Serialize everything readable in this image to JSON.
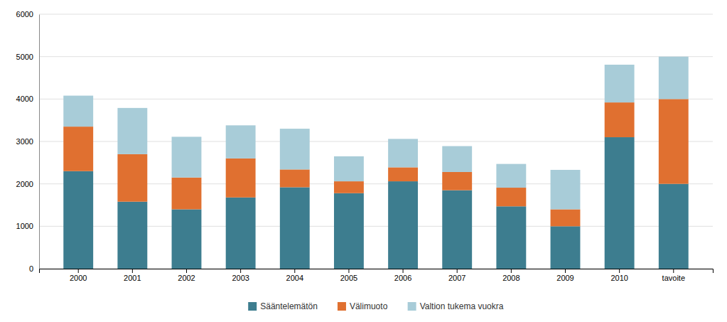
{
  "chart_data": {
    "type": "bar",
    "stacked": true,
    "categories": [
      "2000",
      "2001",
      "2002",
      "2003",
      "2004",
      "2005",
      "2006",
      "2007",
      "2008",
      "2009",
      "2010",
      "tavoite"
    ],
    "series": [
      {
        "name": "Sääntelemätön",
        "color": "#3d7d8f",
        "values": [
          2300,
          1580,
          1400,
          1680,
          1920,
          1780,
          2060,
          1850,
          1470,
          1000,
          3100,
          2000
        ]
      },
      {
        "name": "Välimuoto",
        "color": "#e07030",
        "values": [
          1050,
          1120,
          750,
          920,
          420,
          280,
          330,
          430,
          440,
          400,
          820,
          2000
        ]
      },
      {
        "name": "Valtion tukema vuokra",
        "color": "#a8ccd8",
        "values": [
          730,
          1090,
          960,
          780,
          960,
          590,
          670,
          610,
          560,
          930,
          890,
          1000
        ]
      }
    ],
    "ylim": [
      0,
      6000
    ],
    "yticks": [
      0,
      1000,
      2000,
      3000,
      4000,
      5000,
      6000
    ],
    "grid": true,
    "legend": "bottom"
  }
}
